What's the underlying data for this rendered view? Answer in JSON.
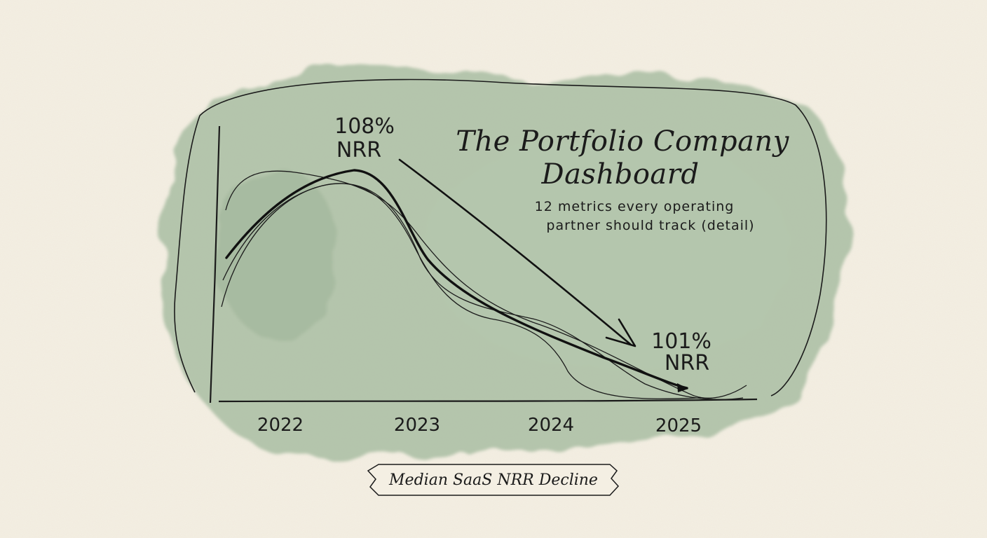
{
  "chart_data": {
    "type": "line",
    "title": "The Portfolio Company",
    "title_line2": "Dashboard",
    "subtitle_line1": "12 metrics every operating",
    "subtitle_line2": "partner should track (detail)",
    "categories": [
      "2022",
      "2023",
      "2024",
      "2025"
    ],
    "series": [
      {
        "values": [
          null,
          108,
          null,
          101
        ],
        "emphasis": true
      }
    ],
    "annotations": [
      {
        "year": "2022.6",
        "value": "108%",
        "label": "NRR"
      },
      {
        "year": "2025",
        "value": "101%",
        "label": "NRR"
      }
    ],
    "caption": "Median SaaS NRR Decline",
    "background_blob_color": "#a9bda2",
    "ink_color": "#1b1b1b",
    "grid": false
  }
}
